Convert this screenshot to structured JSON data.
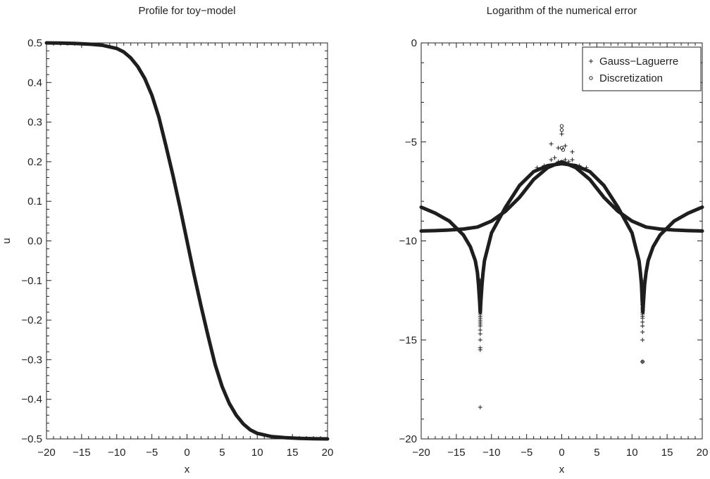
{
  "chart_data": [
    {
      "type": "line",
      "title": "Profile for toy−model",
      "xlabel": "x",
      "ylabel": "u",
      "xlim": [
        -20,
        20
      ],
      "ylim": [
        -0.5,
        0.5
      ],
      "xticks": [
        -20,
        -15,
        -10,
        -5,
        0,
        5,
        10,
        15,
        20
      ],
      "xtick_labels": [
        "−20",
        "−15",
        "−10",
        "−5",
        "0",
        "5",
        "10",
        "15",
        "20"
      ],
      "yticks": [
        0.5,
        0.4,
        0.3,
        0.2,
        0.1,
        0.0,
        -0.1,
        -0.2,
        -0.3,
        -0.4,
        -0.5
      ],
      "ytick_labels": [
        "0.5",
        "0.4",
        "0.3",
        "0.2",
        "0.1",
        "0.0",
        "−0.1",
        "−0.2",
        "−0.3",
        "−0.4",
        "−0.5"
      ],
      "grid": false,
      "series": [
        {
          "x": [
            -20,
            -18,
            -16,
            -14,
            -12,
            -10,
            -9,
            -8,
            -7,
            -6,
            -5,
            -4,
            -3,
            -2,
            -1,
            0,
            1,
            2,
            3,
            4,
            5,
            6,
            7,
            8,
            9,
            10,
            12,
            14,
            16,
            18,
            20
          ],
          "values": [
            0.5,
            0.4995,
            0.4985,
            0.497,
            0.494,
            0.486,
            0.477,
            0.462,
            0.44,
            0.41,
            0.368,
            0.312,
            0.24,
            0.165,
            0.085,
            0.0,
            -0.085,
            -0.165,
            -0.24,
            -0.312,
            -0.368,
            -0.41,
            -0.44,
            -0.462,
            -0.477,
            -0.486,
            -0.494,
            -0.497,
            -0.4985,
            -0.4995,
            -0.5
          ]
        }
      ]
    },
    {
      "type": "line",
      "title": "Logarithm of the numerical error",
      "xlabel": "x",
      "ylabel": "",
      "xlim": [
        -20,
        20
      ],
      "ylim": [
        -20,
        0
      ],
      "xticks": [
        -20,
        -15,
        -10,
        -5,
        0,
        5,
        10,
        15,
        20
      ],
      "xtick_labels": [
        "−20",
        "−15",
        "−10",
        "−5",
        "0",
        "5",
        "10",
        "15",
        "20"
      ],
      "yticks": [
        0,
        -5,
        -10,
        -15,
        -20
      ],
      "ytick_labels": [
        "0",
        "−5",
        "−10",
        "−15",
        "−20"
      ],
      "grid": false,
      "legend_position": "top-right",
      "legend": [
        {
          "label": "Gauss−Laguerre",
          "marker": "plus"
        },
        {
          "label": "Discretization",
          "marker": "circle"
        }
      ],
      "series": [
        {
          "label": "Gauss−Laguerre",
          "marker": "plus",
          "x": [
            -11.6,
            -11.6,
            -11.6,
            -11.6,
            -11.6,
            -11.6,
            -11.6,
            -11.6,
            -11.6,
            -11.6,
            -11.6,
            -11.6,
            -11.6,
            -11.6,
            -11.6,
            -11.6,
            -11.6,
            -11.6,
            -11.6,
            -11.6,
            -11.6,
            -11.6,
            -11.6,
            -3.5,
            -2.5,
            -1.5,
            -1,
            -0.5,
            0,
            0.5,
            1,
            1.5,
            2.5,
            3.5,
            -1.5,
            -0.5,
            0.5,
            1.5,
            11.5,
            11.5,
            11.5,
            11.5,
            11.5,
            11.5,
            11.5,
            11.5,
            11.5,
            11.5,
            11.5,
            11.5,
            11.5,
            11.5,
            11.5,
            11.5,
            11.5,
            11.5
          ],
          "values": [
            -12.0,
            -12.2,
            -12.4,
            -12.6,
            -12.8,
            -13.0,
            -13.2,
            -13.4,
            -13.5,
            -13.6,
            -13.7,
            -13.8,
            -13.9,
            -14.0,
            -14.1,
            -14.2,
            -14.3,
            -14.5,
            -14.7,
            -15.0,
            -15.4,
            -15.5,
            -18.4,
            -6.3,
            -6.2,
            -5.9,
            -5.8,
            -6.0,
            -4.6,
            -5.9,
            -6.0,
            -5.9,
            -6.2,
            -6.3,
            -5.1,
            -5.3,
            -5.2,
            -5.5,
            -12.0,
            -12.2,
            -12.4,
            -12.6,
            -12.8,
            -13.0,
            -13.2,
            -13.4,
            -13.5,
            -13.6,
            -13.7,
            -13.8,
            -13.9,
            -14.1,
            -14.3,
            -14.6,
            -15.0,
            -16.1
          ]
        },
        {
          "label": "Discretization",
          "marker": "circle",
          "x": [
            0,
            0,
            0,
            0.2,
            11.5
          ],
          "values": [
            -4.2,
            -4.4,
            -5.3,
            -5.4,
            -16.1
          ]
        },
        {
          "label": "",
          "marker": "none",
          "x": [
            -20,
            -18,
            -16,
            -14,
            -12,
            -10,
            -8,
            -6,
            -4,
            -2,
            0,
            2,
            4,
            6,
            8,
            10,
            12,
            14,
            16,
            18,
            20
          ],
          "values": [
            -9.5,
            -9.48,
            -9.45,
            -9.4,
            -9.3,
            -9.0,
            -8.5,
            -7.8,
            -6.9,
            -6.3,
            -6.0,
            -6.3,
            -6.9,
            -7.8,
            -8.5,
            -9.0,
            -9.3,
            -9.4,
            -9.45,
            -9.48,
            -9.5
          ]
        },
        {
          "label": "",
          "marker": "none",
          "x": [
            -20,
            -18,
            -16,
            -14,
            -13,
            -12.3,
            -12,
            -11.85,
            -11.7,
            -11.6,
            -11.5,
            -11.35,
            -11.2,
            -11,
            -10,
            -8,
            -6,
            -4,
            -2,
            0,
            2,
            4,
            6,
            8,
            10,
            11,
            11.2,
            11.35,
            11.45,
            11.55,
            11.65,
            11.8,
            12,
            12.3,
            13,
            14,
            16,
            18,
            20
          ],
          "values": [
            -8.3,
            -8.6,
            -9.0,
            -9.7,
            -10.3,
            -11.0,
            -11.6,
            -12.2,
            -13.0,
            -13.6,
            -13.0,
            -12.2,
            -11.6,
            -11.0,
            -9.6,
            -8.3,
            -7.2,
            -6.5,
            -6.2,
            -6.1,
            -6.2,
            -6.5,
            -7.2,
            -8.3,
            -9.6,
            -11.0,
            -11.6,
            -12.2,
            -13.0,
            -13.6,
            -13.0,
            -12.2,
            -11.6,
            -11.0,
            -10.3,
            -9.7,
            -9.0,
            -8.6,
            -8.3
          ]
        }
      ]
    }
  ]
}
